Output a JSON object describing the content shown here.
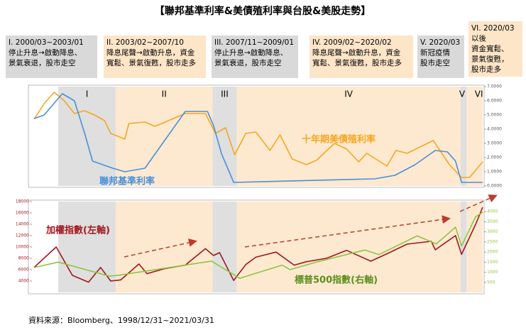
{
  "title": "【聯邦基準利率&美債殖利率與台股&美股走勢】",
  "source": "資料來源：Bloomberg、1998/12/31~2021/03/31",
  "phases": [
    {
      "numeral": "I",
      "note": [
        "I. 2000/03~2003/01",
        "停止升息→啟動降息、",
        "景氣衰退，股市走空"
      ],
      "start": 2000.2,
      "end": 2003.05,
      "shade": "#d9d9d9"
    },
    {
      "numeral": "II",
      "note": [
        "II. 2003/02~2007/10",
        "降息尾聲→啟動升息，資金",
        "寬鬆、景氣復甦，股市走多"
      ],
      "start": 2003.05,
      "end": 2007.85,
      "shade": "#fde5c8"
    },
    {
      "numeral": "III",
      "note": [
        "III. 2007/11~2009/01",
        "停止升息→啟動降息、",
        "景氣衰退，股市走空"
      ],
      "start": 2007.85,
      "end": 2009.05,
      "shade": "#d9d9d9"
    },
    {
      "numeral": "IV",
      "note": [
        "IV. 2009/02~2020/02",
        "降息尾聲→啟動升息，資金",
        "寬鬆、景氣復甦，股市走多"
      ],
      "start": 2009.05,
      "end": 2020.15,
      "shade": "#fde5c8"
    },
    {
      "numeral": "V",
      "note": [
        "V. 2020/03",
        "新冠疫情",
        "股市走空"
      ],
      "start": 2020.15,
      "end": 2020.45,
      "shade": "#d9d9d9"
    },
    {
      "numeral": "VI",
      "note": [
        "VI. 2020/03",
        "以後",
        "資金寬鬆、",
        "景氣復甦，",
        "股市走多"
      ],
      "start": 2020.45,
      "end": 2021.25,
      "shade": "#fde5c8"
    }
  ],
  "chart_data": [
    {
      "type": "line",
      "xlim": [
        1999,
        2021.25
      ],
      "ylim": [
        0,
        7
      ],
      "yticks": [
        {
          "value": 0,
          "label": "0.0000"
        },
        {
          "value": 1,
          "label": "1.0000"
        },
        {
          "value": 2,
          "label": "2.0000"
        },
        {
          "value": 3,
          "label": "3.0000"
        },
        {
          "value": 4,
          "label": "4.0000"
        },
        {
          "value": 5,
          "label": "5.0000"
        },
        {
          "value": 6,
          "label": "6.0000"
        },
        {
          "value": 7,
          "label": "7.0000"
        }
      ],
      "series": [
        {
          "name": "十年期美債殖利率",
          "color": "#f5a623",
          "x": [
            1999,
            1999.5,
            2000,
            2000.5,
            2001,
            2001.5,
            2002,
            2002.5,
            2002.8,
            2003.5,
            2003.7,
            2004.5,
            2005,
            2006.5,
            2007.5,
            2008,
            2008.5,
            2008.95,
            2009.5,
            2010,
            2010.7,
            2011.2,
            2011.8,
            2012.5,
            2013,
            2013.9,
            2014.5,
            2015.1,
            2015.5,
            2016.5,
            2016.95,
            2017.5,
            2018.8,
            2019.6,
            2020.2,
            2020.6,
            2021.25
          ],
          "values": [
            4.7,
            5.8,
            6.6,
            6.0,
            5.1,
            5.3,
            5.0,
            4.6,
            3.7,
            3.3,
            4.4,
            4.5,
            4.2,
            5.1,
            5.1,
            3.7,
            4.1,
            2.2,
            3.7,
            3.8,
            2.5,
            3.6,
            1.9,
            1.5,
            1.8,
            3.0,
            2.6,
            1.7,
            2.3,
            1.4,
            2.5,
            2.3,
            3.2,
            1.5,
            0.6,
            0.6,
            1.7
          ]
        },
        {
          "name": "聯邦基準利率",
          "color": "#4a90d9",
          "x": [
            1999,
            1999.5,
            2000.4,
            2001.0,
            2001.5,
            2001.9,
            2002.9,
            2003.5,
            2004.5,
            2005.5,
            2006.5,
            2007.6,
            2007.9,
            2008.3,
            2008.9,
            2015.9,
            2016.9,
            2017.9,
            2018.9,
            2019.5,
            2019.9,
            2020.2,
            2021.25
          ],
          "values": [
            4.75,
            5.0,
            6.5,
            6.0,
            3.75,
            1.75,
            1.25,
            1.0,
            1.25,
            3.25,
            5.25,
            5.25,
            4.25,
            2.25,
            0.25,
            0.5,
            0.75,
            1.5,
            2.5,
            2.4,
            1.75,
            0.25,
            0.25
          ]
        }
      ]
    },
    {
      "type": "line",
      "xlim": [
        1999,
        2021.25
      ],
      "ylim": [
        2000,
        18000
      ],
      "yticks": [
        4000,
        6000,
        8000,
        10000,
        12000,
        14000,
        16000,
        18000
      ],
      "y2lim": [
        0,
        4500
      ],
      "y2ticks": [
        500,
        1000,
        1500,
        2000,
        2500,
        3000,
        3500,
        4000
      ],
      "series": [
        {
          "name": "加權指數(左軸)",
          "color": "#a3151c",
          "x": [
            1999,
            2000.1,
            2000.9,
            2001.7,
            2002.3,
            2002.8,
            2003.3,
            2004.2,
            2004.6,
            2005.5,
            2006.5,
            2007.5,
            2007.9,
            2008.2,
            2008.9,
            2009.5,
            2010,
            2011,
            2011.9,
            2012.5,
            2013.5,
            2014.5,
            2015.7,
            2016.5,
            2017.5,
            2018.7,
            2018.9,
            2019.9,
            2020.2,
            2020.9,
            2021.25
          ],
          "values": [
            6400,
            10000,
            5000,
            3800,
            6400,
            4000,
            4200,
            7000,
            5300,
            6200,
            6800,
            9700,
            8500,
            9000,
            4100,
            6900,
            8200,
            9100,
            6800,
            7400,
            8000,
            9400,
            7500,
            8800,
            10500,
            11000,
            9500,
            12000,
            8700,
            14000,
            17000
          ]
        },
        {
          "name": "標普500指數(右軸)",
          "color": "#8dc63f",
          "axis": "y2",
          "x": [
            1999,
            2000.2,
            2002.75,
            2003.2,
            2007.8,
            2009.2,
            2011.3,
            2011.7,
            2013,
            2015.4,
            2016.1,
            2018,
            2018.95,
            2019.9,
            2020.2,
            2020.9,
            2021.25
          ],
          "values": [
            1230,
            1500,
            800,
            850,
            1550,
            700,
            1350,
            1130,
            1500,
            2100,
            1870,
            2800,
            2400,
            3230,
            2300,
            3750,
            3970
          ]
        }
      ]
    }
  ]
}
